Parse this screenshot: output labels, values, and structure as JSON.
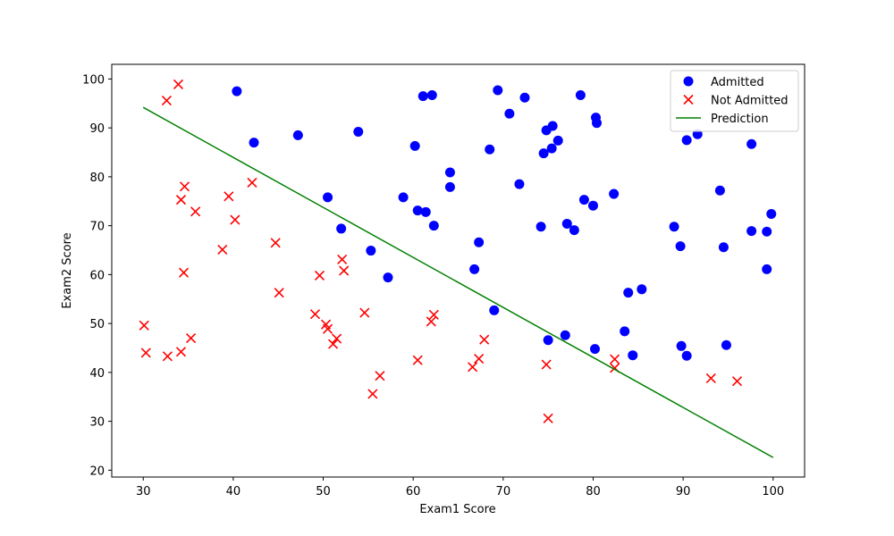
{
  "chart_data": {
    "type": "scatter",
    "title": "",
    "xlabel": "Exam1 Score",
    "ylabel": "Exam2 Score",
    "xlim": [
      26.5,
      103.5
    ],
    "ylim": [
      18.6,
      103.0
    ],
    "xticks": [
      30,
      40,
      50,
      60,
      70,
      80,
      90,
      100
    ],
    "yticks": [
      20,
      30,
      40,
      50,
      60,
      70,
      80,
      90,
      100
    ],
    "grid": false,
    "legend_position": "top-right",
    "series": [
      {
        "name": "Admitted",
        "marker": "circle",
        "color": "#0000ff",
        "points": [
          [
            40.4,
            97.5
          ],
          [
            42.3,
            87.0
          ],
          [
            47.2,
            88.5
          ],
          [
            53.9,
            89.2
          ],
          [
            50.5,
            75.8
          ],
          [
            52.0,
            69.4
          ],
          [
            55.3,
            64.9
          ],
          [
            57.2,
            59.4
          ],
          [
            58.9,
            75.8
          ],
          [
            60.2,
            86.3
          ],
          [
            60.5,
            73.1
          ],
          [
            61.1,
            96.5
          ],
          [
            61.4,
            72.8
          ],
          [
            62.1,
            96.7
          ],
          [
            62.3,
            70.0
          ],
          [
            64.1,
            80.9
          ],
          [
            64.1,
            77.9
          ],
          [
            67.3,
            66.6
          ],
          [
            66.8,
            61.1
          ],
          [
            68.5,
            85.6
          ],
          [
            69.0,
            52.7
          ],
          [
            69.4,
            97.7
          ],
          [
            70.7,
            92.9
          ],
          [
            71.8,
            78.5
          ],
          [
            72.4,
            96.2
          ],
          [
            74.5,
            84.8
          ],
          [
            74.8,
            89.5
          ],
          [
            75.4,
            85.8
          ],
          [
            75.5,
            90.4
          ],
          [
            76.1,
            87.4
          ],
          [
            74.2,
            69.8
          ],
          [
            77.1,
            70.4
          ],
          [
            77.9,
            69.1
          ],
          [
            79.0,
            75.3
          ],
          [
            80.0,
            74.1
          ],
          [
            80.3,
            92.1
          ],
          [
            80.4,
            91.0
          ],
          [
            78.6,
            96.7
          ],
          [
            82.3,
            76.5
          ],
          [
            83.9,
            56.3
          ],
          [
            85.4,
            57.0
          ],
          [
            83.5,
            48.4
          ],
          [
            84.4,
            43.5
          ],
          [
            76.9,
            47.6
          ],
          [
            75.0,
            46.6
          ],
          [
            80.2,
            44.8
          ],
          [
            89.0,
            69.8
          ],
          [
            89.7,
            65.8
          ],
          [
            89.8,
            45.4
          ],
          [
            90.4,
            43.4
          ],
          [
            90.4,
            87.5
          ],
          [
            91.6,
            88.7
          ],
          [
            94.1,
            77.2
          ],
          [
            94.5,
            65.6
          ],
          [
            94.8,
            45.6
          ],
          [
            97.6,
            86.7
          ],
          [
            97.6,
            68.9
          ],
          [
            99.3,
            68.8
          ],
          [
            99.8,
            72.4
          ],
          [
            99.3,
            61.1
          ]
        ]
      },
      {
        "name": "Not Admitted",
        "marker": "x",
        "color": "#ff0000",
        "points": [
          [
            32.6,
            95.6
          ],
          [
            33.9,
            98.9
          ],
          [
            34.6,
            78.0
          ],
          [
            34.2,
            75.3
          ],
          [
            35.8,
            72.9
          ],
          [
            39.5,
            76.0
          ],
          [
            40.2,
            71.2
          ],
          [
            42.1,
            78.8
          ],
          [
            38.8,
            65.1
          ],
          [
            44.7,
            66.5
          ],
          [
            34.5,
            60.4
          ],
          [
            45.1,
            56.3
          ],
          [
            30.1,
            49.6
          ],
          [
            30.3,
            44.0
          ],
          [
            32.7,
            43.3
          ],
          [
            34.2,
            44.2
          ],
          [
            35.3,
            47.0
          ],
          [
            49.1,
            51.9
          ],
          [
            49.6,
            59.8
          ],
          [
            50.3,
            49.8
          ],
          [
            50.5,
            48.9
          ],
          [
            51.1,
            45.8
          ],
          [
            51.5,
            46.9
          ],
          [
            52.1,
            63.1
          ],
          [
            52.3,
            60.8
          ],
          [
            54.6,
            52.2
          ],
          [
            55.5,
            35.6
          ],
          [
            56.3,
            39.3
          ],
          [
            60.5,
            42.5
          ],
          [
            62.0,
            50.4
          ],
          [
            62.3,
            51.8
          ],
          [
            66.6,
            41.1
          ],
          [
            67.3,
            42.8
          ],
          [
            67.9,
            46.7
          ],
          [
            74.8,
            41.6
          ],
          [
            75.0,
            30.6
          ],
          [
            82.4,
            42.7
          ],
          [
            82.4,
            40.9
          ],
          [
            93.1,
            38.8
          ],
          [
            96.0,
            38.2
          ]
        ]
      },
      {
        "name": "Prediction",
        "marker": "line",
        "color": "#008000",
        "points": [
          [
            30.0,
            94.2
          ],
          [
            100.0,
            22.6
          ]
        ]
      }
    ]
  }
}
